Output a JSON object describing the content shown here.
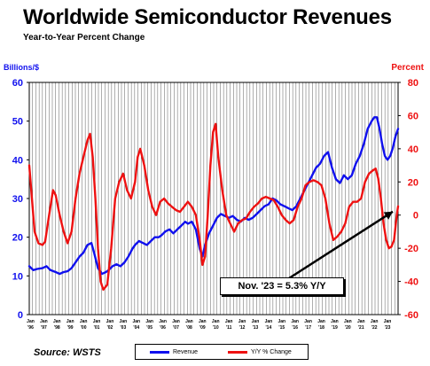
{
  "title": "Worldwide Semiconductor Revenues",
  "subtitle": "Year-to-Year Percent Change",
  "source": "Source: WSTS",
  "annotation": "Nov. '23 = 5.3% Y/Y",
  "colors": {
    "revenue": "#1010ee",
    "yoy": "#ee1111",
    "grid": "#000000"
  },
  "chart_data": {
    "type": "line",
    "left_axis": {
      "label": "Billions/$",
      "min": 0,
      "max": 60,
      "ticks": [
        "0",
        "10",
        "20",
        "30",
        "40",
        "50",
        "60"
      ],
      "color": "#1010ee"
    },
    "right_axis": {
      "label": "Percent",
      "min": -60,
      "max": 80,
      "ticks": [
        "-60",
        "-40",
        "-20",
        "0",
        "20",
        "40",
        "60",
        "80"
      ],
      "color": "#ee1111"
    },
    "x_labels": [
      {
        "top": "Jan",
        "bottom": "'96"
      },
      {
        "top": "Jan",
        "bottom": "'97"
      },
      {
        "top": "Jan",
        "bottom": "'98"
      },
      {
        "top": "Jan",
        "bottom": "'99"
      },
      {
        "top": "Jan",
        "bottom": "'00"
      },
      {
        "top": "Jan",
        "bottom": "'01"
      },
      {
        "top": "Jan",
        "bottom": "'02"
      },
      {
        "top": "Jan",
        "bottom": "'03"
      },
      {
        "top": "Jan",
        "bottom": "'04"
      },
      {
        "top": "Jan",
        "bottom": "'05"
      },
      {
        "top": "Jan",
        "bottom": "'06"
      },
      {
        "top": "Jan",
        "bottom": "'07"
      },
      {
        "top": "Jan",
        "bottom": "'08"
      },
      {
        "top": "Jan",
        "bottom": "'09"
      },
      {
        "top": "Jan",
        "bottom": "'10"
      },
      {
        "top": "Jan",
        "bottom": "'11"
      },
      {
        "top": "Jan",
        "bottom": "'12"
      },
      {
        "top": "Jan",
        "bottom": "'13"
      },
      {
        "top": "Jan",
        "bottom": "'14"
      },
      {
        "top": "Jan",
        "bottom": "'15"
      },
      {
        "top": "Jan",
        "bottom": "'16"
      },
      {
        "top": "Jan",
        "bottom": "'17"
      },
      {
        "top": "Jan",
        "bottom": "'18"
      },
      {
        "top": "Jan",
        "bottom": "'19"
      },
      {
        "top": "Jan",
        "bottom": "'20"
      },
      {
        "top": "Jan",
        "bottom": "'21"
      },
      {
        "top": "Jan",
        "bottom": "'22"
      },
      {
        "top": "Jan",
        "bottom": "'23"
      }
    ],
    "x_range": [
      1996.0,
      2023.9
    ],
    "series": [
      {
        "name": "Revenue",
        "axis": "left",
        "x": [
          1996.0,
          1996.3,
          1996.6,
          1997.0,
          1997.3,
          1997.6,
          1998.0,
          1998.3,
          1998.6,
          1998.9,
          1999.2,
          1999.5,
          1999.8,
          2000.1,
          2000.4,
          2000.7,
          2000.9,
          2001.2,
          2001.5,
          2001.8,
          2002.0,
          2002.3,
          2002.6,
          2002.9,
          2003.2,
          2003.5,
          2003.8,
          2004.0,
          2004.3,
          2004.6,
          2004.9,
          2005.2,
          2005.5,
          2005.8,
          2006.0,
          2006.3,
          2006.6,
          2006.9,
          2007.2,
          2007.5,
          2007.8,
          2008.0,
          2008.3,
          2008.6,
          2008.9,
          2009.1,
          2009.3,
          2009.6,
          2009.9,
          2010.2,
          2010.5,
          2010.8,
          2011.1,
          2011.4,
          2011.7,
          2012.0,
          2012.3,
          2012.6,
          2012.9,
          2013.2,
          2013.5,
          2013.8,
          2014.1,
          2014.4,
          2014.7,
          2015.0,
          2015.3,
          2015.6,
          2015.9,
          2016.2,
          2016.5,
          2016.8,
          2017.1,
          2017.4,
          2017.7,
          2018.0,
          2018.3,
          2018.6,
          2018.9,
          2019.2,
          2019.5,
          2019.8,
          2020.1,
          2020.4,
          2020.7,
          2021.0,
          2021.3,
          2021.6,
          2021.9,
          2022.1,
          2022.3,
          2022.5,
          2022.7,
          2022.9,
          2023.1,
          2023.3,
          2023.5,
          2023.7,
          2023.9
        ],
        "values": [
          12.5,
          11.5,
          11.8,
          12.0,
          12.5,
          11.5,
          11.0,
          10.5,
          11.0,
          11.2,
          12.0,
          13.5,
          15.0,
          16.0,
          18.0,
          18.5,
          16.0,
          12.0,
          10.5,
          11.0,
          11.5,
          12.5,
          13.0,
          12.5,
          13.5,
          15.0,
          17.0,
          18.0,
          19.0,
          18.5,
          18.0,
          19.0,
          20.0,
          20.0,
          20.5,
          21.5,
          22.0,
          21.0,
          22.0,
          23.0,
          24.0,
          23.5,
          24.0,
          22.0,
          17.0,
          15.0,
          18.0,
          21.0,
          23.0,
          25.0,
          26.0,
          25.5,
          25.0,
          25.5,
          24.5,
          24.0,
          25.0,
          24.5,
          25.0,
          26.0,
          27.0,
          28.0,
          28.5,
          30.0,
          29.5,
          28.5,
          28.0,
          27.5,
          27.0,
          28.0,
          30.0,
          32.0,
          34.0,
          36.0,
          38.0,
          39.0,
          41.0,
          42.0,
          38.0,
          35.0,
          34.0,
          36.0,
          35.0,
          36.0,
          39.0,
          41.0,
          44.0,
          48.0,
          50.0,
          51.0,
          51.0,
          48.0,
          44.0,
          41.0,
          40.0,
          41.0,
          43.0,
          46.0,
          48.0
        ]
      },
      {
        "name": "Y/Y % Change",
        "axis": "right",
        "x": [
          1996.0,
          1996.2,
          1996.4,
          1996.7,
          1997.0,
          1997.2,
          1997.5,
          1997.8,
          1998.0,
          1998.3,
          1998.6,
          1998.9,
          1999.2,
          1999.5,
          1999.8,
          2000.1,
          2000.4,
          2000.6,
          2000.8,
          2001.0,
          2001.2,
          2001.4,
          2001.6,
          2001.9,
          2002.2,
          2002.5,
          2002.8,
          2003.1,
          2003.4,
          2003.7,
          2004.0,
          2004.2,
          2004.4,
          2004.7,
          2005.0,
          2005.3,
          2005.6,
          2005.9,
          2006.2,
          2006.5,
          2006.8,
          2007.1,
          2007.4,
          2007.7,
          2008.0,
          2008.3,
          2008.6,
          2008.9,
          2009.1,
          2009.3,
          2009.5,
          2009.7,
          2009.9,
          2010.1,
          2010.3,
          2010.6,
          2010.9,
          2011.2,
          2011.5,
          2011.8,
          2012.1,
          2012.4,
          2012.7,
          2013.0,
          2013.3,
          2013.6,
          2013.9,
          2014.2,
          2014.5,
          2014.8,
          2015.1,
          2015.4,
          2015.7,
          2016.0,
          2016.3,
          2016.6,
          2016.9,
          2017.2,
          2017.5,
          2017.8,
          2018.1,
          2018.4,
          2018.7,
          2019.0,
          2019.3,
          2019.6,
          2019.9,
          2020.2,
          2020.5,
          2020.8,
          2021.1,
          2021.4,
          2021.7,
          2022.0,
          2022.2,
          2022.4,
          2022.6,
          2022.8,
          2023.0,
          2023.2,
          2023.4,
          2023.6,
          2023.8,
          2023.9
        ],
        "values": [
          30.0,
          10.0,
          -10.0,
          -17.0,
          -18.0,
          -16.0,
          0.0,
          15.0,
          12.0,
          0.0,
          -10.0,
          -17.0,
          -10.0,
          10.0,
          25.0,
          35.0,
          45.0,
          49.0,
          35.0,
          10.0,
          -20.0,
          -40.0,
          -45.0,
          -42.0,
          -20.0,
          10.0,
          20.0,
          25.0,
          15.0,
          10.0,
          20.0,
          35.0,
          40.0,
          30.0,
          15.0,
          5.0,
          0.0,
          8.0,
          10.0,
          7.0,
          5.0,
          3.0,
          2.0,
          5.0,
          8.0,
          5.0,
          0.0,
          -15.0,
          -30.0,
          -25.0,
          0.0,
          30.0,
          50.0,
          55.0,
          35.0,
          15.0,
          0.0,
          -5.0,
          -10.0,
          -5.0,
          -3.0,
          -2.0,
          2.0,
          5.0,
          7.0,
          10.0,
          11.0,
          10.0,
          9.0,
          5.0,
          0.0,
          -3.0,
          -5.0,
          -3.0,
          5.0,
          10.0,
          18.0,
          20.0,
          21.0,
          20.0,
          18.0,
          10.0,
          -5.0,
          -15.0,
          -13.0,
          -10.0,
          -5.0,
          5.0,
          8.0,
          8.0,
          10.0,
          20.0,
          25.0,
          27.0,
          28.0,
          22.0,
          10.0,
          -5.0,
          -15.0,
          -20.0,
          -19.0,
          -15.0,
          0.0,
          5.3
        ]
      }
    ],
    "grid": "vertical",
    "legend": "bottom-center",
    "annotation_point": {
      "x": 2023.9,
      "y": 5.3
    }
  }
}
